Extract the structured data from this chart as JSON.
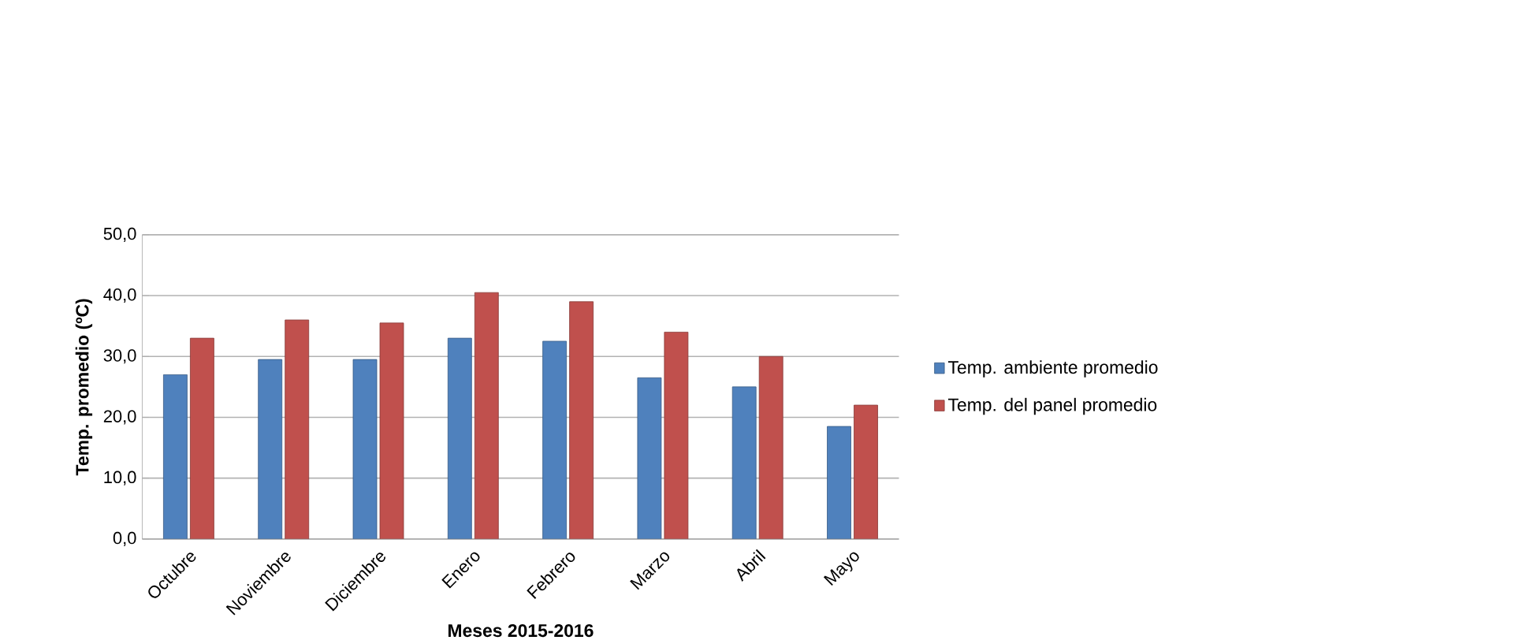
{
  "chart_data": {
    "type": "bar",
    "xlabel": "Meses 2015-2016",
    "ylabel": "Temp. promedio (ºC)",
    "categories": [
      "Octubre",
      "Noviembre",
      "Diciembre",
      "Enero",
      "Febrero",
      "Marzo",
      "Abril",
      "Mayo"
    ],
    "series": [
      {
        "name": "Temp. ambiente promedio",
        "color": "#4f81bd",
        "values": [
          27,
          29.5,
          29.5,
          33,
          32.5,
          26.5,
          25,
          18.5
        ]
      },
      {
        "name": "Temp. del panel promedio",
        "color": "#c0504d",
        "values": [
          33,
          36,
          35.5,
          40.5,
          39,
          34,
          30,
          22
        ]
      }
    ],
    "ylim": [
      0,
      50
    ],
    "yticks": [
      {
        "value": 0,
        "label": "0,0"
      },
      {
        "value": 10,
        "label": "10,0"
      },
      {
        "value": 20,
        "label": "20,0"
      },
      {
        "value": 30,
        "label": "30,0"
      },
      {
        "value": 40,
        "label": "40,0"
      },
      {
        "value": 50,
        "label": "50,0"
      }
    ],
    "grid": "y",
    "legend": "right"
  }
}
